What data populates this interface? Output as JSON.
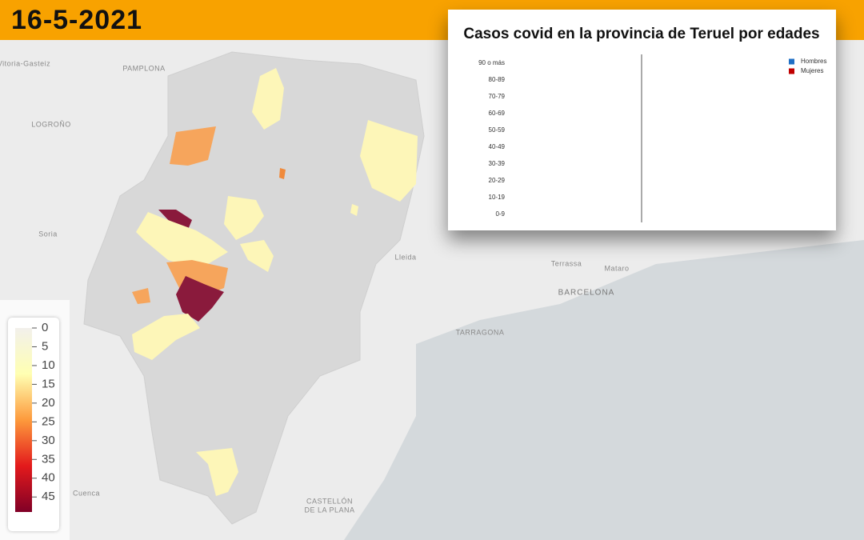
{
  "header": {
    "date": "16-5-2021"
  },
  "map": {
    "labels": [
      "Vitoria-Gasteiz",
      "PAMPLONA",
      "LOGROÑO",
      "Soria",
      "Lleida",
      "Terrassa",
      "Mataro",
      "BARCELONA",
      "TARRAGONA",
      "Cuenca",
      "CASTELLÓN",
      "DE LA PLANA"
    ]
  },
  "colorbar": {
    "lim": [
      0,
      49
    ],
    "ticks": [
      0,
      5,
      10,
      15,
      20,
      25,
      30,
      35,
      40,
      45
    ],
    "colors": [
      "#f2f0ec",
      "#ffffb2",
      "#fd9a3c",
      "#e31a1c",
      "#800026"
    ]
  },
  "chart_data": {
    "type": "bar",
    "orientation": "horizontal",
    "title": "Casos covid en la provincia de Teruel por edades",
    "categories": [
      "90 o más",
      "80-89",
      "70-79",
      "60-69",
      "50-59",
      "40-49",
      "30-39",
      "20-29",
      "10-19",
      "0-9"
    ],
    "series": [
      {
        "name": "Hombres",
        "color": "#1f6fc5"
      },
      {
        "name": "Mujeres",
        "color": "#c00000"
      }
    ]
  }
}
